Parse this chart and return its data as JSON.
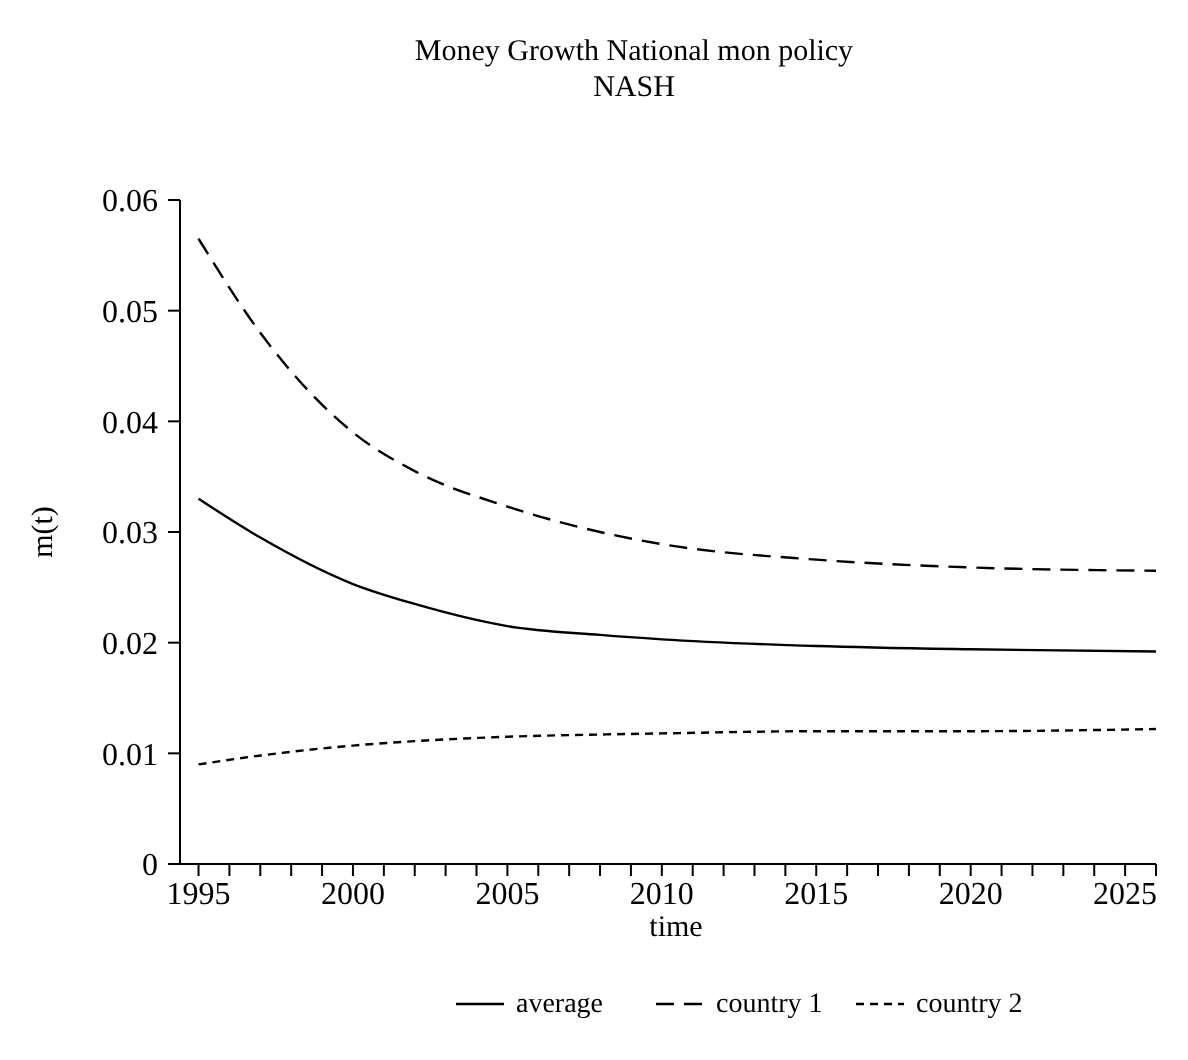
{
  "chart_data": {
    "type": "line",
    "title": "Money Growth National mon policy",
    "subtitle": "NASH",
    "xlabel": "time",
    "ylabel": "m(t)",
    "x": [
      1995,
      1997,
      2000,
      2002,
      2005,
      2008,
      2010,
      2015,
      2020,
      2026
    ],
    "series": [
      {
        "name": "average",
        "color": "#000000",
        "line_style": "solid",
        "values": [
          0.033,
          0.0295,
          0.0253,
          0.0235,
          0.0215,
          0.0207,
          0.0203,
          0.0197,
          0.0194,
          0.0192
        ]
      },
      {
        "name": "country 1",
        "color": "#000000",
        "line_style": "dashed",
        "values": [
          0.0565,
          0.048,
          0.039,
          0.0355,
          0.0323,
          0.03,
          0.0289,
          0.0275,
          0.0268,
          0.0265
        ]
      },
      {
        "name": "country 2",
        "color": "#000000",
        "line_style": "dotted",
        "values": [
          0.009,
          0.0098,
          0.0107,
          0.0111,
          0.0115,
          0.0117,
          0.0118,
          0.012,
          0.012,
          0.0122
        ]
      }
    ],
    "xlim": [
      1994.4,
      2026
    ],
    "xticks": [
      1995,
      {
        "value": 1996,
        "label": null
      },
      {
        "value": 1997,
        "label": null
      },
      {
        "value": 1998,
        "label": null
      },
      {
        "value": 1999,
        "label": null
      },
      2000,
      {
        "value": 2001,
        "label": null
      },
      {
        "value": 2002,
        "label": null
      },
      {
        "value": 2003,
        "label": null
      },
      {
        "value": 2004,
        "label": null
      },
      2005,
      {
        "value": 2006,
        "label": null
      },
      {
        "value": 2007,
        "label": null
      },
      {
        "value": 2008,
        "label": null
      },
      {
        "value": 2009,
        "label": null
      },
      2010,
      {
        "value": 2011,
        "label": null
      },
      {
        "value": 2012,
        "label": null
      },
      {
        "value": 2013,
        "label": null
      },
      {
        "value": 2014,
        "label": null
      },
      2015,
      {
        "value": 2016,
        "label": null
      },
      {
        "value": 2017,
        "label": null
      },
      {
        "value": 2018,
        "label": null
      },
      {
        "value": 2019,
        "label": null
      },
      2020,
      {
        "value": 2021,
        "label": null
      },
      {
        "value": 2022,
        "label": null
      },
      {
        "value": 2023,
        "label": null
      },
      {
        "value": 2024,
        "label": null
      },
      2025,
      {
        "value": 2026,
        "label": null
      }
    ],
    "ylim": [
      0,
      0.06
    ],
    "yticks": [
      0,
      0.01,
      0.02,
      0.03,
      0.04,
      0.05,
      0.06
    ],
    "grid": false,
    "legend": "bottom",
    "marker": "none"
  }
}
